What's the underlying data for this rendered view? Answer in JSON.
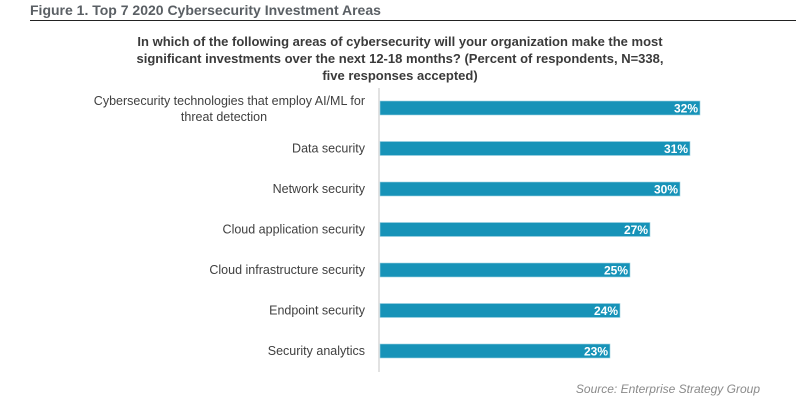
{
  "figure_title": "Figure 1. Top 7 2020 Cybersecurity Investment Areas",
  "source": "Source: Enterprise Strategy Group",
  "colors": {
    "bar": "#1793b8",
    "bar_label": "#ffffff",
    "axis": "#d9d9d9",
    "category_text": "#404040"
  },
  "chart_data": {
    "type": "bar",
    "orientation": "horizontal",
    "title": "In which of the following areas of cybersecurity will your organization make the most significant investments over the next 12-18 months? (Percent of respondents, N=338, five responses accepted)",
    "categories": [
      "Cybersecurity technologies that employ AI/ML for threat detection",
      "Data security",
      "Network security",
      "Cloud application security",
      "Cloud infrastructure security",
      "Endpoint security",
      "Security analytics"
    ],
    "category_lines": [
      [
        "Cybersecurity technologies that employ AI/ML for",
        "threat detection"
      ],
      [
        "Data security"
      ],
      [
        "Network security"
      ],
      [
        "Cloud application security"
      ],
      [
        "Cloud infrastructure security"
      ],
      [
        "Endpoint security"
      ],
      [
        "Security analytics"
      ]
    ],
    "values": [
      32,
      31,
      30,
      27,
      25,
      24,
      23
    ],
    "data_labels": [
      "32%",
      "31%",
      "30%",
      "27%",
      "25%",
      "24%",
      "23%"
    ],
    "unit": "%",
    "xlim": [
      0,
      35
    ],
    "grid": false,
    "legend": "none",
    "xlabel": "",
    "ylabel": ""
  }
}
